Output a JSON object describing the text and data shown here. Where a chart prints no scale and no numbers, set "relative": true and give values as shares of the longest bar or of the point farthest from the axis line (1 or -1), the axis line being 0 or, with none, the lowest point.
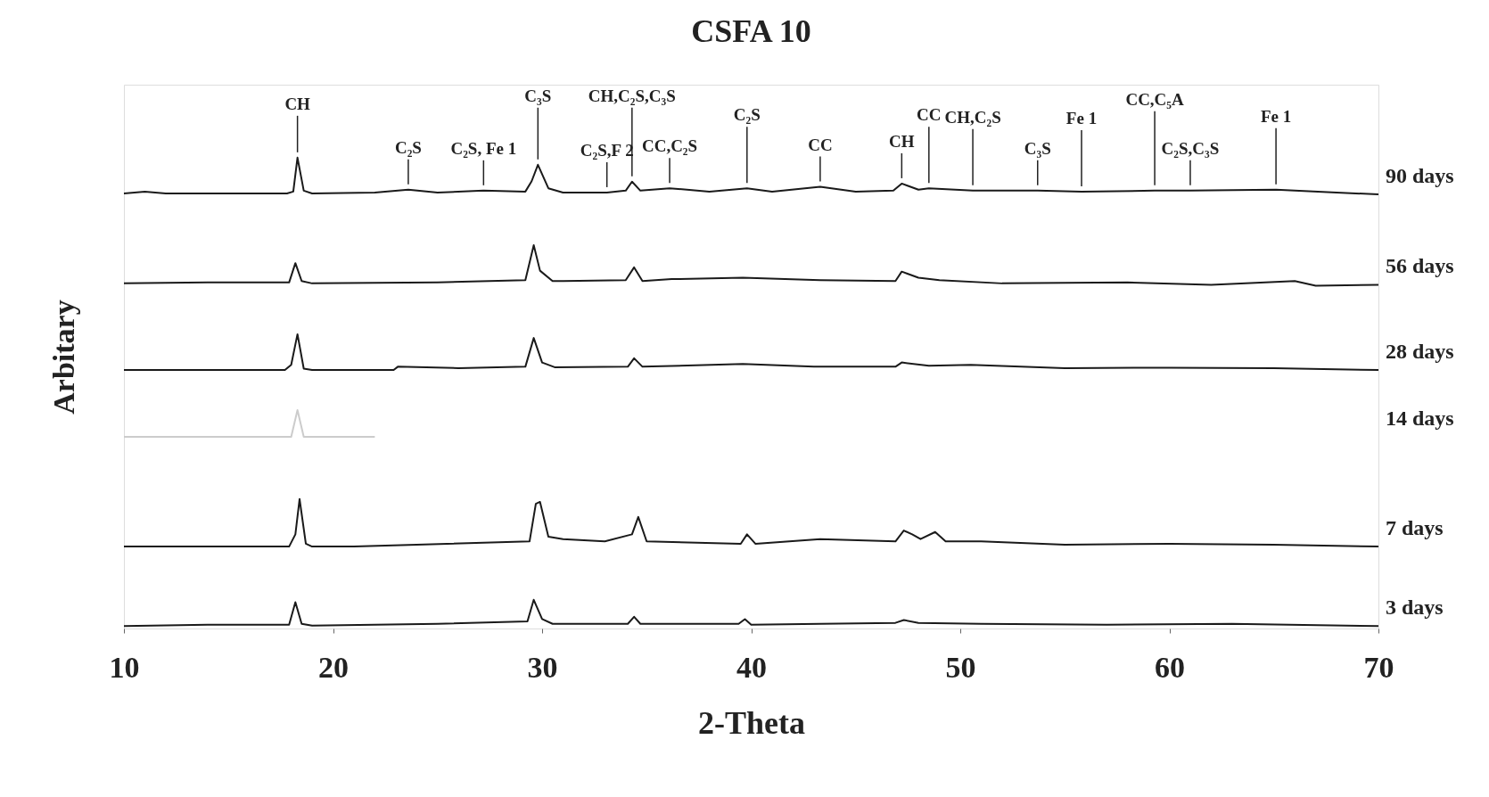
{
  "chart_data": {
    "type": "line",
    "title": "CSFA 10",
    "xlabel": "2-Theta",
    "ylabel": "Arbitary",
    "relative": true,
    "xlim": [
      10,
      70
    ],
    "xticks": [
      10,
      20,
      30,
      40,
      50,
      60,
      70
    ],
    "series": [
      {
        "name": "90 days",
        "color": "#1a1a1a",
        "x": [
          10,
          11,
          12,
          17.8,
          18.1,
          18.3,
          18.6,
          19,
          22,
          23.6,
          25,
          27.2,
          29.2,
          29.5,
          29.8,
          30.3,
          31,
          33.1,
          34.0,
          34.3,
          34.7,
          36.1,
          38,
          39.8,
          41,
          43.3,
          45,
          46.8,
          47.2,
          48,
          48.5,
          50.6,
          53.7,
          55.8,
          59.3,
          61,
          65.1,
          68,
          70
        ],
        "values": [
          0.924,
          0.928,
          0.924,
          0.924,
          0.928,
          1.0,
          0.93,
          0.924,
          0.926,
          0.932,
          0.926,
          0.93,
          0.928,
          0.95,
          0.985,
          0.935,
          0.926,
          0.926,
          0.93,
          0.949,
          0.93,
          0.935,
          0.928,
          0.935,
          0.928,
          0.938,
          0.928,
          0.93,
          0.945,
          0.932,
          0.935,
          0.93,
          0.93,
          0.928,
          0.93,
          0.93,
          0.932,
          0.926,
          0.922
        ]
      },
      {
        "name": "56 days",
        "color": "#1a1a1a",
        "x": [
          10,
          14,
          17.9,
          18.2,
          18.5,
          19,
          25,
          29.2,
          29.6,
          29.9,
          30.5,
          31,
          34.0,
          34.4,
          34.8,
          36.2,
          39.6,
          43.3,
          46.9,
          47.2,
          48,
          49,
          52,
          58,
          62,
          66,
          67,
          70
        ],
        "values": [
          0.733,
          0.735,
          0.735,
          0.776,
          0.738,
          0.733,
          0.735,
          0.74,
          0.814,
          0.76,
          0.738,
          0.738,
          0.74,
          0.767,
          0.738,
          0.742,
          0.745,
          0.74,
          0.738,
          0.758,
          0.745,
          0.74,
          0.733,
          0.735,
          0.73,
          0.738,
          0.728,
          0.73
        ]
      },
      {
        "name": "28 days",
        "color": "#1a1a1a",
        "x": [
          10,
          17.7,
          18.0,
          18.3,
          18.6,
          19,
          22.9,
          23.1,
          26,
          29.2,
          29.6,
          30.0,
          30.6,
          34.1,
          34.4,
          34.8,
          39.6,
          43,
          46.9,
          47.2,
          48.5,
          50.5,
          55,
          60,
          65,
          70
        ],
        "values": [
          0.549,
          0.549,
          0.56,
          0.625,
          0.552,
          0.549,
          0.549,
          0.556,
          0.553,
          0.556,
          0.617,
          0.565,
          0.555,
          0.556,
          0.574,
          0.556,
          0.562,
          0.556,
          0.556,
          0.565,
          0.558,
          0.56,
          0.553,
          0.554,
          0.553,
          0.549
        ]
      },
      {
        "name": "14 days",
        "color": "#cccccc",
        "x": [
          10,
          12,
          14,
          16,
          18.0,
          18.3,
          18.6,
          20,
          22
        ],
        "values": [
          0.407,
          0.407,
          0.407,
          0.407,
          0.407,
          0.464,
          0.407,
          0.407,
          0.407
        ]
      },
      {
        "name": "7 days",
        "color": "#1a1a1a",
        "x": [
          10,
          17.9,
          18.2,
          18.4,
          18.7,
          19,
          21,
          24,
          29.4,
          29.7,
          29.9,
          30.3,
          31,
          33,
          34.3,
          34.6,
          35,
          39.5,
          39.8,
          40.2,
          43.3,
          46.9,
          47.3,
          47.7,
          48.1,
          48.8,
          49.3,
          51,
          55,
          60,
          65,
          70
        ],
        "values": [
          0.174,
          0.174,
          0.2,
          0.275,
          0.18,
          0.174,
          0.174,
          0.178,
          0.185,
          0.265,
          0.269,
          0.195,
          0.19,
          0.185,
          0.2,
          0.237,
          0.185,
          0.18,
          0.2,
          0.18,
          0.19,
          0.185,
          0.208,
          0.2,
          0.19,
          0.205,
          0.185,
          0.185,
          0.178,
          0.18,
          0.178,
          0.174
        ]
      },
      {
        "name": "3 days",
        "color": "#1a1a1a",
        "x": [
          10,
          14,
          17.9,
          18.2,
          18.5,
          19,
          25,
          29.3,
          29.6,
          30.0,
          30.5,
          34.1,
          34.4,
          34.7,
          39.4,
          39.7,
          40,
          43.3,
          46.9,
          47.3,
          48,
          51,
          57,
          63,
          70
        ],
        "values": [
          0.005,
          0.008,
          0.008,
          0.056,
          0.01,
          0.006,
          0.01,
          0.015,
          0.061,
          0.02,
          0.01,
          0.01,
          0.025,
          0.01,
          0.01,
          0.02,
          0.008,
          0.01,
          0.012,
          0.018,
          0.012,
          0.01,
          0.008,
          0.01,
          0.005
        ]
      }
    ],
    "annotations": [
      {
        "text": "CH",
        "x": 18.3,
        "y": 1.0
      },
      {
        "text": "C₂S",
        "x": 23.6,
        "y": 0.932
      },
      {
        "text": "C₂S, Fe 1",
        "x": 27.2,
        "y": 0.93
      },
      {
        "text": "C₃S",
        "x": 29.8,
        "y": 0.985
      },
      {
        "text": "C₂S,F 2",
        "x": 33.1,
        "y": 0.926
      },
      {
        "text": "CH,C₂S,C₃S",
        "x": 34.3,
        "y": 0.949
      },
      {
        "text": "CC,C₂S",
        "x": 36.1,
        "y": 0.935
      },
      {
        "text": "C₂S",
        "x": 39.8,
        "y": 0.935
      },
      {
        "text": "CC",
        "x": 43.3,
        "y": 0.938
      },
      {
        "text": "CH",
        "x": 47.2,
        "y": 0.945
      },
      {
        "text": "CC",
        "x": 48.5,
        "y": 0.935
      },
      {
        "text": "CH,C₂S",
        "x": 50.6,
        "y": 0.93
      },
      {
        "text": "C₃S",
        "x": 53.7,
        "y": 0.93
      },
      {
        "text": "Fe 1",
        "x": 55.8,
        "y": 0.928
      },
      {
        "text": "CC,C₅A",
        "x": 59.3,
        "y": 0.93
      },
      {
        "text": "C₂S,C₃S",
        "x": 61,
        "y": 0.93
      },
      {
        "text": "Fe 1",
        "x": 65.1,
        "y": 0.932
      }
    ]
  }
}
